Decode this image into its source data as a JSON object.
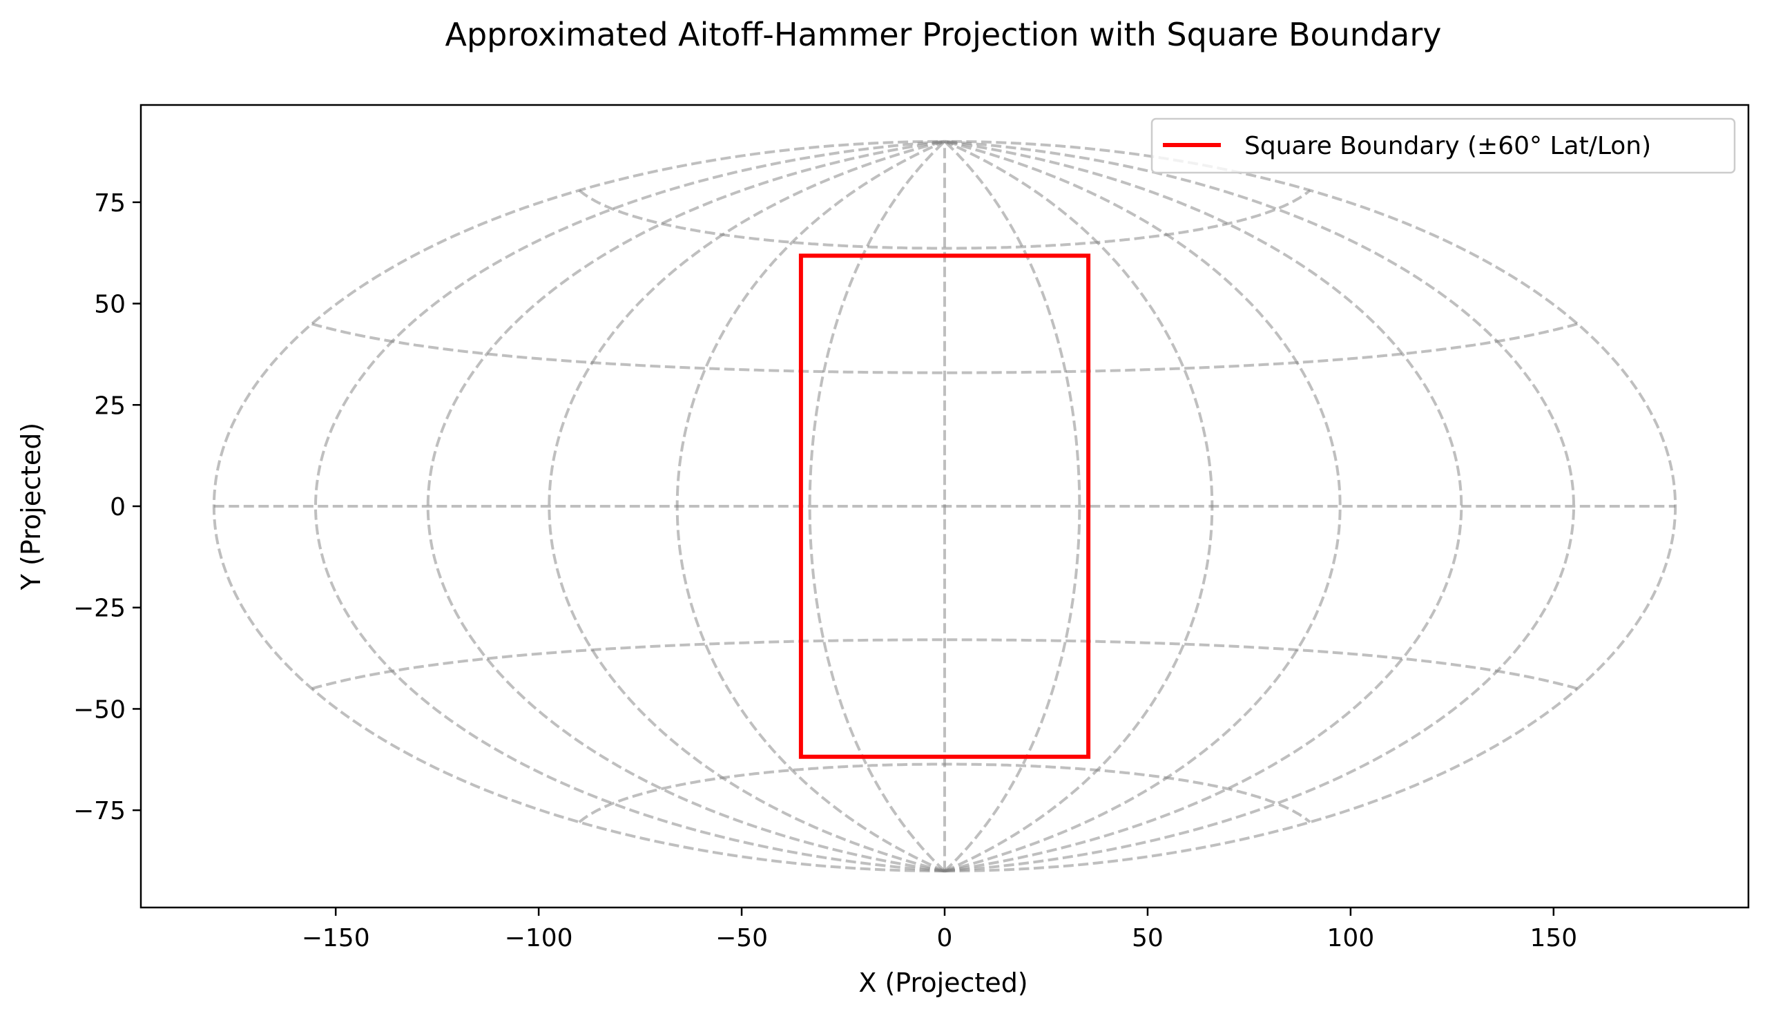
{
  "chart_data": {
    "type": "line",
    "title": "Approximated Aitoff-Hammer Projection with Square Boundary",
    "xlabel": "X (Projected)",
    "ylabel": "Y (Projected)",
    "xlim": [
      -198,
      198
    ],
    "ylim": [
      -99,
      99
    ],
    "x_ticks": [
      -150,
      -100,
      -50,
      0,
      50,
      100,
      150
    ],
    "x_tick_labels": [
      "−150",
      "−100",
      "−50",
      "0",
      "50",
      "100",
      "150"
    ],
    "y_ticks": [
      -75,
      -50,
      -25,
      0,
      25,
      50,
      75
    ],
    "y_tick_labels": [
      "−75",
      "−50",
      "−25",
      "0",
      "25",
      "50",
      "75"
    ],
    "grid": false,
    "legend_position": "top-right",
    "graticule": {
      "meridians_deg": [
        -180,
        -150,
        -120,
        -90,
        -60,
        -30,
        0,
        30,
        60,
        90,
        120,
        150,
        180
      ],
      "parallels_deg": [
        -90,
        -60,
        -30,
        0,
        30,
        60,
        90
      ],
      "color": "#808080",
      "style": "dashed"
    },
    "series": [
      {
        "name": "Square Boundary (±60° Lat/Lon)",
        "color": "#ff0000",
        "x": [
          -35.4,
          35.4,
          35.4,
          -35.4,
          -35.4
        ],
        "y": [
          61.8,
          61.8,
          -61.8,
          -61.8,
          61.8
        ]
      }
    ]
  }
}
